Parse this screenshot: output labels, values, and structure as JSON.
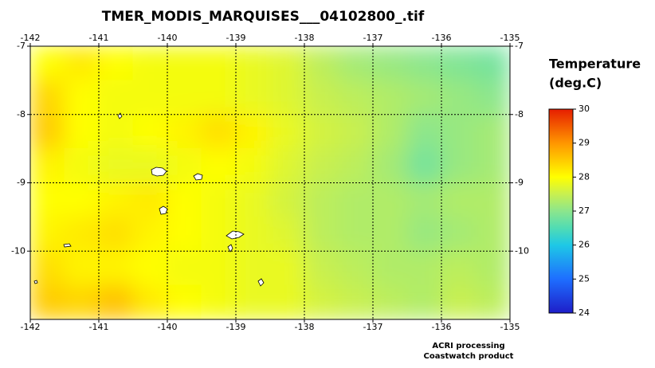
{
  "chart_data": {
    "type": "heatmap",
    "title": "TMER_MODIS_MARQUISES___04102800_.tif",
    "xlim": [
      -142,
      -135
    ],
    "ylim": [
      -11,
      -7
    ],
    "xticks": [
      -142,
      -141,
      -140,
      -139,
      -138,
      -137,
      -136,
      -135
    ],
    "yticks": [
      -7,
      -8,
      -9,
      -10
    ],
    "grid": true,
    "values": [
      [
        28.0,
        28.2,
        28.0,
        27.9,
        27.9,
        27.9,
        27.8,
        27.7,
        27.4,
        27.2,
        27.1,
        27.0,
        26.9,
        26.8
      ],
      [
        28.4,
        28.0,
        27.9,
        27.9,
        27.9,
        27.9,
        27.8,
        27.7,
        27.5,
        27.4,
        27.3,
        27.2,
        27.1,
        27.0
      ],
      [
        28.5,
        28.0,
        27.9,
        28.0,
        28.1,
        28.3,
        28.1,
        27.8,
        27.6,
        27.5,
        27.3,
        27.0,
        27.1,
        27.2
      ],
      [
        28.1,
        27.9,
        27.8,
        27.8,
        27.9,
        28.0,
        27.9,
        27.7,
        27.5,
        27.4,
        27.2,
        26.8,
        27.1,
        27.2
      ],
      [
        28.0,
        28.0,
        28.1,
        28.2,
        28.0,
        27.9,
        27.8,
        27.6,
        27.4,
        27.3,
        27.3,
        27.2,
        27.3,
        27.3
      ],
      [
        28.1,
        28.2,
        28.3,
        28.1,
        28.0,
        27.9,
        27.8,
        27.7,
        27.4,
        27.3,
        27.3,
        27.1,
        27.2,
        27.3
      ],
      [
        28.3,
        28.1,
        28.1,
        28.0,
        27.9,
        27.9,
        27.8,
        27.8,
        27.5,
        27.4,
        27.3,
        27.3,
        27.4,
        27.3
      ],
      [
        28.5,
        28.4,
        28.6,
        28.2,
        28.0,
        27.9,
        27.8,
        27.8,
        27.6,
        27.5,
        27.4,
        27.3,
        27.5,
        27.4
      ]
    ],
    "colorbar": {
      "title": [
        "Temperature",
        "(deg.C)"
      ],
      "lim": [
        24,
        30
      ],
      "ticks": [
        24,
        25,
        26,
        27,
        28,
        29,
        30
      ]
    },
    "colormap": [
      {
        "value": 24,
        "color": "#1e1ec8"
      },
      {
        "value": 25,
        "color": "#1e6eff"
      },
      {
        "value": 26,
        "color": "#1ec8e6"
      },
      {
        "value": 26.5,
        "color": "#50dcb4"
      },
      {
        "value": 27,
        "color": "#8ce68c"
      },
      {
        "value": 27.5,
        "color": "#c8f050"
      },
      {
        "value": 28,
        "color": "#ffff00"
      },
      {
        "value": 29,
        "color": "#ff9600"
      },
      {
        "value": 30,
        "color": "#e61e00"
      }
    ],
    "footer": [
      "ACRI processing",
      "Coastwatch product"
    ]
  }
}
